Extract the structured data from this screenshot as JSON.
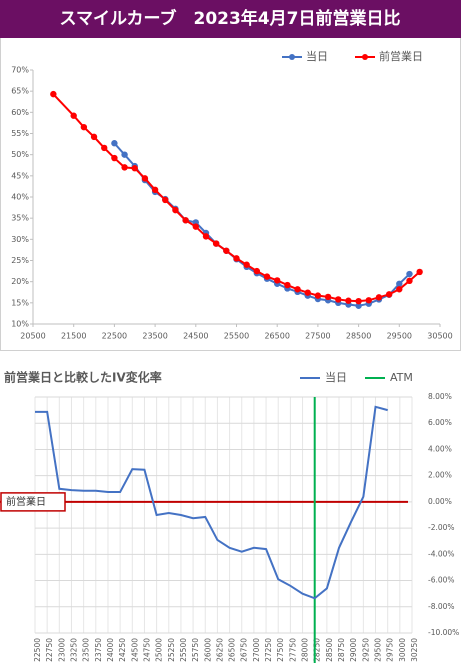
{
  "chart_data": [
    {
      "type": "line",
      "title": "スマイルカーブ　2023年4月7日前営業日比",
      "x": [
        21000,
        21500,
        21750,
        22000,
        22250,
        22500,
        22750,
        23000,
        23250,
        23500,
        23750,
        24000,
        24250,
        24500,
        24750,
        25000,
        25250,
        25500,
        25750,
        26000,
        26250,
        26500,
        26750,
        27000,
        27250,
        27500,
        27750,
        28000,
        28250,
        28500,
        28750,
        29000,
        29250,
        29500,
        29750,
        30000
      ],
      "series": [
        {
          "name": "当日",
          "color": "#4472c4",
          "values": [
            null,
            null,
            null,
            null,
            null,
            52.7,
            50.0,
            47.3,
            44.0,
            41.2,
            39.5,
            37.2,
            34.5,
            34.0,
            31.5,
            29.0,
            27.3,
            25.3,
            23.5,
            22.0,
            20.7,
            19.5,
            18.4,
            17.6,
            16.7,
            15.9,
            15.6,
            15.0,
            14.6,
            14.3,
            14.8,
            15.8,
            16.9,
            19.5,
            21.8,
            null
          ]
        },
        {
          "name": "前営業日",
          "color": "#ff0000",
          "values": [
            64.3,
            59.2,
            56.5,
            54.2,
            51.6,
            49.2,
            47.0,
            46.8,
            44.4,
            41.7,
            39.3,
            36.9,
            34.5,
            33.0,
            30.7,
            29.0,
            27.3,
            25.5,
            24.0,
            22.5,
            21.2,
            20.3,
            19.2,
            18.2,
            17.4,
            16.7,
            16.4,
            15.8,
            15.5,
            15.4,
            15.6,
            16.3,
            17.0,
            18.2,
            20.2,
            22.3
          ]
        }
      ],
      "xlim": [
        20500,
        30500
      ],
      "xticks": [
        20500,
        21500,
        22500,
        23500,
        24500,
        25500,
        26500,
        27500,
        28500,
        29500,
        30500
      ],
      "ylim": [
        10,
        70
      ],
      "yticks": [
        {
          "value": 10,
          "label": "10%"
        },
        {
          "value": 15,
          "label": "15%"
        },
        {
          "value": 20,
          "label": "20%"
        },
        {
          "value": 25,
          "label": "25%"
        },
        {
          "value": 30,
          "label": "30%"
        },
        {
          "value": 35,
          "label": "35%"
        },
        {
          "value": 40,
          "label": "40%"
        },
        {
          "value": 45,
          "label": "45%"
        },
        {
          "value": 50,
          "label": "50%"
        },
        {
          "value": 55,
          "label": "55%"
        },
        {
          "value": 60,
          "label": "60%"
        },
        {
          "value": 65,
          "label": "65%"
        },
        {
          "value": 70,
          "label": "70%"
        }
      ],
      "grid": false,
      "legend": "top-right"
    },
    {
      "type": "line",
      "title": "前営業日と比較したIV変化率",
      "categories": [
        22500,
        22750,
        23000,
        23250,
        23500,
        23750,
        24000,
        24250,
        24500,
        24750,
        25000,
        25250,
        25500,
        25750,
        26000,
        26250,
        26500,
        26750,
        27000,
        27250,
        27500,
        27750,
        28000,
        28250,
        28500,
        28750,
        29000,
        29250,
        29500,
        29750,
        30000,
        30250
      ],
      "series": [
        {
          "name": "当日",
          "color": "#4472c4",
          "values": [
            6.87,
            6.87,
            1.0,
            0.9,
            0.85,
            0.85,
            0.75,
            0.75,
            2.5,
            2.45,
            -1.0,
            -0.85,
            -1.0,
            -1.25,
            -1.15,
            -2.9,
            -3.5,
            -3.8,
            -3.5,
            -3.6,
            -5.9,
            -6.4,
            -7.0,
            -7.35,
            -6.6,
            -3.5,
            -1.5,
            0.4,
            7.25,
            7.0,
            null,
            null
          ]
        }
      ],
      "atm": {
        "name": "ATM",
        "color": "#00b050",
        "x": 28250
      },
      "reference_line": {
        "label": "前営業日",
        "value": 0,
        "color": "#c00000"
      },
      "ylim": [
        -10,
        8
      ],
      "yticks": [
        {
          "value": 8,
          "label": "8.00%"
        },
        {
          "value": 6,
          "label": "6.00%"
        },
        {
          "value": 4,
          "label": "4.00%"
        },
        {
          "value": 2,
          "label": "2.00%"
        },
        {
          "value": 0,
          "label": "0.00%"
        },
        {
          "value": -2,
          "label": "-2.00%"
        },
        {
          "value": -4,
          "label": "-4.00%"
        },
        {
          "value": -6,
          "label": "-6.00%"
        },
        {
          "value": -8,
          "label": "-8.00%"
        },
        {
          "value": -10,
          "label": "-10.00%"
        }
      ],
      "grid": true,
      "legend": "top-right"
    }
  ]
}
